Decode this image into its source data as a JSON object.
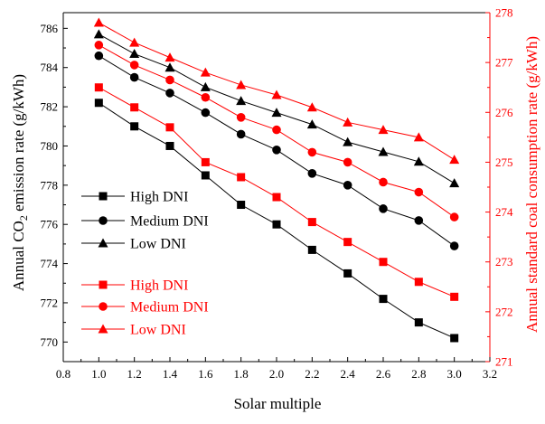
{
  "chart_data": {
    "type": "line",
    "xlabel": "Solar multiple",
    "x": [
      1.0,
      1.2,
      1.4,
      1.6,
      1.8,
      2.0,
      2.2,
      2.4,
      2.6,
      2.8,
      3.0
    ],
    "x_ticks": [
      "0.8",
      "1.0",
      "1.2",
      "1.4",
      "1.6",
      "1.8",
      "2.0",
      "2.2",
      "2.4",
      "2.6",
      "2.8",
      "3.0",
      "3.2"
    ],
    "xlim": [
      0.8,
      3.2
    ],
    "ylabel_left_prefix": "Annual  CO",
    "ylabel_left_sub": "2",
    "ylabel_left_suffix": " emission rate (g/kWh)",
    "ylim_left": [
      769,
      786.8
    ],
    "y_ticks_left": [
      "770",
      "772",
      "774",
      "776",
      "778",
      "780",
      "782",
      "784",
      "786"
    ],
    "ylabel_right": "Annual standard coal consumption rate (g/kWh)",
    "ylim_right": [
      271,
      278
    ],
    "y_ticks_right": [
      "271",
      "272",
      "273",
      "274",
      "275",
      "276",
      "277",
      "278"
    ],
    "right_axis_color": "#ff0000",
    "grid": false,
    "legend_groups": [
      {
        "placement": "middle-left",
        "color": "#000000"
      },
      {
        "placement": "bottom-left",
        "color": "#ff0000"
      }
    ],
    "series": [
      {
        "name": "High DNI",
        "axis": "left",
        "color": "#000000",
        "marker": "square",
        "values": [
          782.2,
          781.0,
          780.0,
          778.5,
          777.0,
          776.0,
          774.7,
          773.5,
          772.2,
          771.0,
          770.2
        ]
      },
      {
        "name": "Medium DNI",
        "axis": "left",
        "color": "#000000",
        "marker": "circle",
        "values": [
          784.6,
          783.5,
          782.7,
          781.7,
          780.6,
          779.8,
          778.6,
          778.0,
          776.8,
          776.2,
          774.9
        ]
      },
      {
        "name": "Low DNI",
        "axis": "left",
        "color": "#000000",
        "marker": "triangle",
        "values": [
          785.7,
          784.7,
          784.0,
          783.0,
          782.3,
          781.7,
          781.1,
          780.2,
          779.7,
          779.2,
          778.1
        ]
      },
      {
        "name": "High DNI",
        "axis": "right",
        "color": "#ff0000",
        "marker": "square",
        "values": [
          276.5,
          276.1,
          275.7,
          275.0,
          274.7,
          274.3,
          273.8,
          273.4,
          273.0,
          272.6,
          272.3
        ]
      },
      {
        "name": "Medium DNI",
        "axis": "right",
        "color": "#ff0000",
        "marker": "circle",
        "values": [
          277.35,
          276.95,
          276.65,
          276.3,
          275.9,
          275.65,
          275.2,
          275.0,
          274.6,
          274.4,
          273.9
        ]
      },
      {
        "name": "Low DNI",
        "axis": "right",
        "color": "#ff0000",
        "marker": "triangle",
        "values": [
          277.8,
          277.4,
          277.1,
          276.8,
          276.55,
          276.35,
          276.1,
          275.8,
          275.65,
          275.5,
          275.05
        ]
      }
    ]
  }
}
